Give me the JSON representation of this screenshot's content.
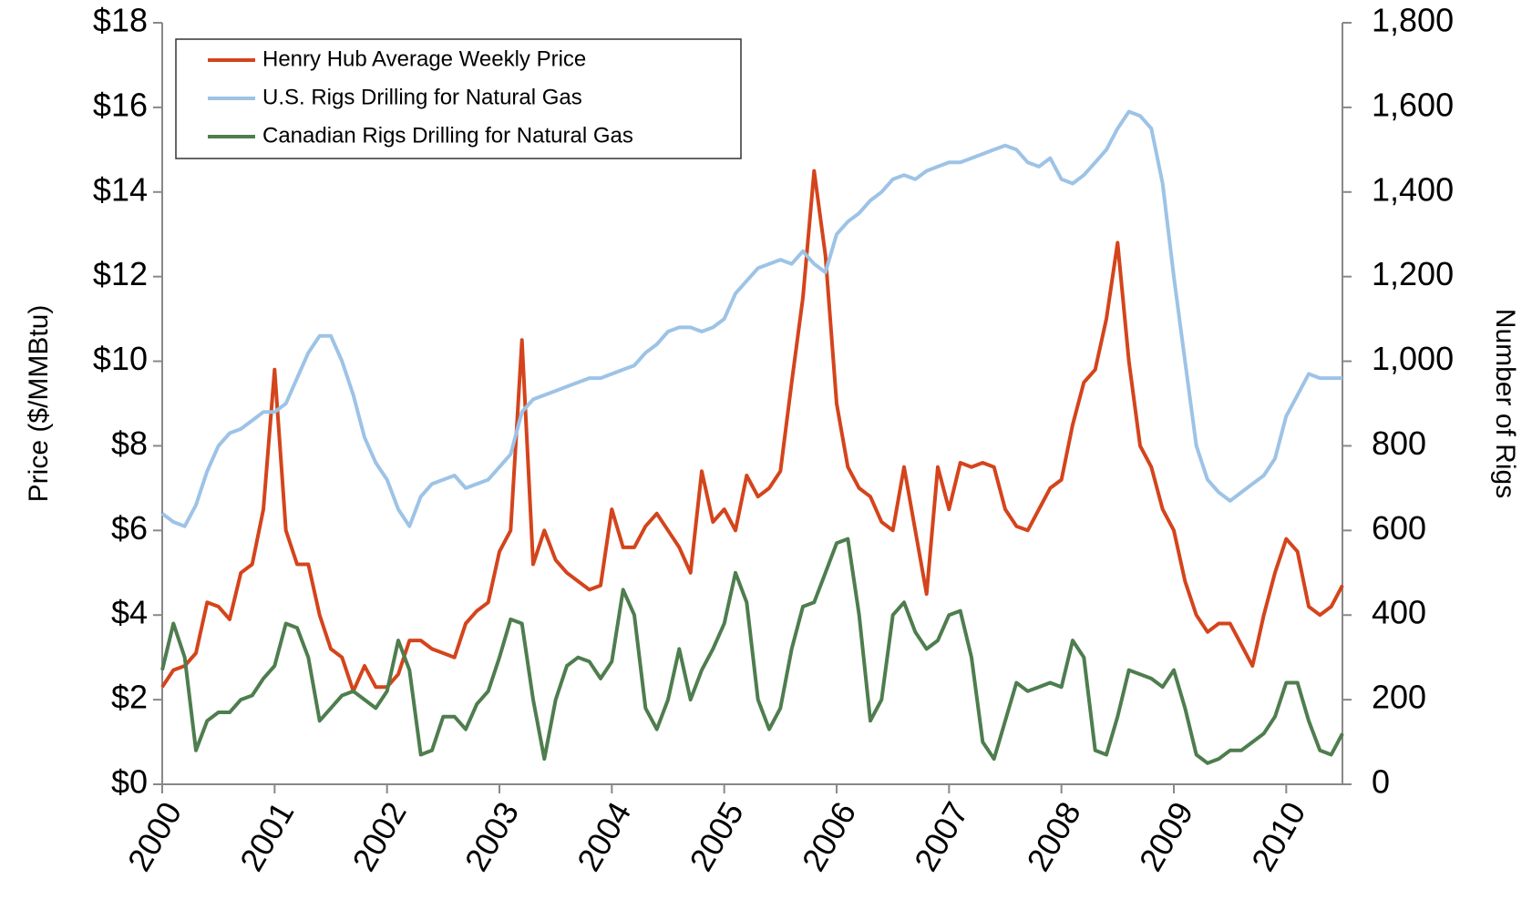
{
  "chart_data": {
    "type": "line",
    "y_label": "Price ($/MMBtu)",
    "y2_label": "Number of Rigs",
    "x": [
      2000.0,
      2000.1,
      2000.2,
      2000.3,
      2000.4,
      2000.5,
      2000.6,
      2000.7,
      2000.8,
      2000.9,
      2001.0,
      2001.1,
      2001.2,
      2001.3,
      2001.4,
      2001.5,
      2001.6,
      2001.7,
      2001.8,
      2001.9,
      2002.0,
      2002.1,
      2002.2,
      2002.3,
      2002.4,
      2002.5,
      2002.6,
      2002.7,
      2002.8,
      2002.9,
      2003.0,
      2003.1,
      2003.2,
      2003.3,
      2003.4,
      2003.5,
      2003.6,
      2003.7,
      2003.8,
      2003.9,
      2004.0,
      2004.1,
      2004.2,
      2004.3,
      2004.4,
      2004.5,
      2004.6,
      2004.7,
      2004.8,
      2004.9,
      2005.0,
      2005.1,
      2005.2,
      2005.3,
      2005.4,
      2005.5,
      2005.6,
      2005.7,
      2005.8,
      2005.9,
      2006.0,
      2006.1,
      2006.2,
      2006.3,
      2006.4,
      2006.5,
      2006.6,
      2006.7,
      2006.8,
      2006.9,
      2007.0,
      2007.1,
      2007.2,
      2007.3,
      2007.4,
      2007.5,
      2007.6,
      2007.7,
      2007.8,
      2007.9,
      2008.0,
      2008.1,
      2008.2,
      2008.3,
      2008.4,
      2008.5,
      2008.6,
      2008.7,
      2008.8,
      2008.9,
      2009.0,
      2009.1,
      2009.2,
      2009.3,
      2009.4,
      2009.5,
      2009.6,
      2009.7,
      2009.8,
      2009.9,
      2010.0,
      2010.1,
      2010.2,
      2010.3,
      2010.4,
      2010.5
    ],
    "series": [
      {
        "name": "Henry Hub Average Weekly Price",
        "color": "#d4441c",
        "axis": "y",
        "values": [
          2.3,
          2.7,
          2.8,
          3.1,
          4.3,
          4.2,
          3.9,
          5.0,
          5.2,
          6.5,
          9.8,
          6.0,
          5.2,
          5.2,
          4.0,
          3.2,
          3.0,
          2.2,
          2.8,
          2.3,
          2.3,
          2.6,
          3.4,
          3.4,
          3.2,
          3.1,
          3.0,
          3.8,
          4.1,
          4.3,
          5.5,
          6.0,
          10.5,
          5.2,
          6.0,
          5.3,
          5.0,
          4.8,
          4.6,
          4.7,
          6.5,
          5.6,
          5.6,
          6.1,
          6.4,
          6.0,
          5.6,
          5.0,
          7.4,
          6.2,
          6.5,
          6.0,
          7.3,
          6.8,
          7.0,
          7.4,
          9.5,
          11.5,
          14.5,
          12.5,
          9.0,
          7.5,
          7.0,
          6.8,
          6.2,
          6.0,
          7.5,
          6.0,
          4.5,
          7.5,
          6.5,
          7.6,
          7.5,
          7.6,
          7.5,
          6.5,
          6.1,
          6.0,
          6.5,
          7.0,
          7.2,
          8.5,
          9.5,
          9.8,
          11.0,
          12.8,
          10.0,
          8.0,
          7.5,
          6.5,
          6.0,
          4.8,
          4.0,
          3.6,
          3.8,
          3.8,
          3.3,
          2.8,
          4.0,
          5.0,
          5.8,
          5.5,
          4.2,
          4.0,
          4.2,
          4.7
        ]
      },
      {
        "name": "U.S. Rigs Drilling for Natural Gas",
        "color": "#9dc3e6",
        "axis": "y2",
        "values": [
          640,
          620,
          610,
          660,
          740,
          800,
          830,
          840,
          860,
          880,
          880,
          900,
          960,
          1020,
          1060,
          1060,
          1000,
          920,
          820,
          760,
          720,
          650,
          610,
          680,
          710,
          720,
          730,
          700,
          710,
          720,
          750,
          780,
          880,
          910,
          920,
          930,
          940,
          950,
          960,
          960,
          970,
          980,
          990,
          1020,
          1040,
          1070,
          1080,
          1080,
          1070,
          1080,
          1100,
          1160,
          1190,
          1220,
          1230,
          1240,
          1230,
          1260,
          1230,
          1210,
          1300,
          1330,
          1350,
          1380,
          1400,
          1430,
          1440,
          1430,
          1450,
          1460,
          1470,
          1470,
          1480,
          1490,
          1500,
          1510,
          1500,
          1470,
          1460,
          1480,
          1430,
          1420,
          1440,
          1470,
          1500,
          1550,
          1590,
          1580,
          1550,
          1420,
          1200,
          1000,
          800,
          720,
          690,
          670,
          690,
          710,
          730,
          770,
          870,
          920,
          970,
          960,
          960,
          960
        ]
      },
      {
        "name": "Canadian Rigs Drilling for Natural Gas",
        "color": "#4e7d4e",
        "axis": "y2",
        "values": [
          270,
          380,
          300,
          80,
          150,
          170,
          170,
          200,
          210,
          250,
          280,
          380,
          370,
          300,
          150,
          180,
          210,
          220,
          200,
          180,
          220,
          340,
          270,
          70,
          80,
          160,
          160,
          130,
          190,
          220,
          300,
          390,
          380,
          200,
          60,
          200,
          280,
          300,
          290,
          250,
          290,
          460,
          400,
          180,
          130,
          200,
          320,
          200,
          270,
          320,
          380,
          500,
          430,
          200,
          130,
          180,
          320,
          420,
          430,
          500,
          570,
          580,
          400,
          150,
          200,
          400,
          430,
          360,
          320,
          340,
          400,
          410,
          300,
          100,
          60,
          150,
          240,
          220,
          230,
          240,
          230,
          340,
          300,
          80,
          70,
          160,
          270,
          260,
          250,
          230,
          270,
          180,
          70,
          50,
          60,
          80,
          80,
          100,
          120,
          160,
          240,
          240,
          150,
          80,
          70,
          120
        ]
      }
    ],
    "xlim": [
      2000,
      2010.5
    ],
    "xticks": [
      2000,
      2001,
      2002,
      2003,
      2004,
      2005,
      2006,
      2007,
      2008,
      2009,
      2010
    ],
    "ylim": [
      0,
      18
    ],
    "yticks": [
      {
        "value": 0,
        "label": "$0"
      },
      {
        "value": 2,
        "label": "$2"
      },
      {
        "value": 4,
        "label": "$4"
      },
      {
        "value": 6,
        "label": "$6"
      },
      {
        "value": 8,
        "label": "$8"
      },
      {
        "value": 10,
        "label": "$10"
      },
      {
        "value": 12,
        "label": "$12"
      },
      {
        "value": 14,
        "label": "$14"
      },
      {
        "value": 16,
        "label": "$16"
      },
      {
        "value": 18,
        "label": "$18"
      }
    ],
    "y2lim": [
      0,
      1800
    ],
    "y2ticks": [
      0,
      200,
      400,
      600,
      800,
      {
        "value": 1000,
        "label": "1,000"
      },
      {
        "value": 1200,
        "label": "1,200"
      },
      {
        "value": 1400,
        "label": "1,400"
      },
      {
        "value": 1600,
        "label": "1,600"
      },
      {
        "value": 1800,
        "label": "1,800"
      }
    ],
    "legend": "top-left"
  }
}
